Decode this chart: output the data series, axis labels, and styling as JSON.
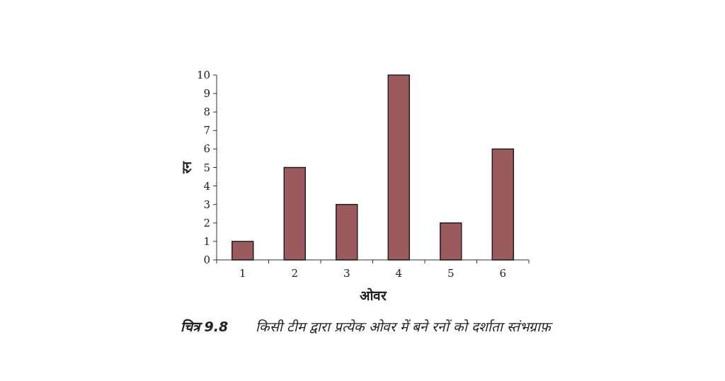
{
  "chart_data": {
    "type": "bar",
    "categories": [
      "1",
      "2",
      "3",
      "4",
      "5",
      "6"
    ],
    "values": [
      1,
      5,
      3,
      10,
      2,
      6
    ],
    "color": "#9b5a5e",
    "xlabel": "ओवर",
    "ylabel": "रन",
    "ylim": [
      0,
      10
    ],
    "yticks": [
      0,
      1,
      2,
      3,
      4,
      5,
      6,
      7,
      8,
      9,
      10
    ],
    "annotations": [
      "चित्र 9.8",
      "किसी टीम द्वारा प्रत्येक ओवर में बने रनों को दर्शाता स्तंभग्राफ़"
    ]
  }
}
